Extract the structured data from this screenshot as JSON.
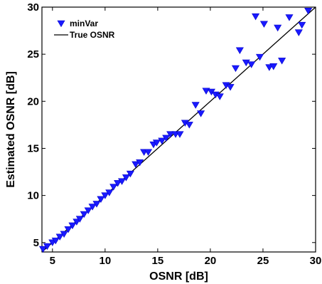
{
  "chart_data": {
    "type": "scatter",
    "xlabel": "OSNR [dB]",
    "ylabel": "Estimated OSNR [dB]",
    "xlim": [
      4,
      30
    ],
    "ylim": [
      4,
      30
    ],
    "xticks": [
      5,
      10,
      15,
      20,
      25,
      30
    ],
    "yticks": [
      5,
      10,
      15,
      20,
      25,
      30
    ],
    "grid": false,
    "legend_position": "top-left",
    "series": [
      {
        "name": "minVar",
        "kind": "scatter",
        "marker": "triangle-down",
        "color": "#1a1aff",
        "points": [
          [
            4.1,
            4.3
          ],
          [
            4.5,
            4.6
          ],
          [
            5.0,
            5.0
          ],
          [
            5.3,
            5.2
          ],
          [
            5.7,
            5.6
          ],
          [
            6.1,
            5.9
          ],
          [
            6.5,
            6.4
          ],
          [
            6.9,
            6.8
          ],
          [
            7.3,
            7.2
          ],
          [
            7.6,
            7.5
          ],
          [
            8.0,
            8.0
          ],
          [
            8.4,
            8.4
          ],
          [
            8.8,
            8.8
          ],
          [
            9.2,
            9.1
          ],
          [
            9.6,
            9.6
          ],
          [
            10.0,
            10.0
          ],
          [
            10.4,
            10.3
          ],
          [
            10.8,
            10.9
          ],
          [
            11.2,
            11.3
          ],
          [
            11.6,
            11.5
          ],
          [
            12.0,
            11.9
          ],
          [
            12.4,
            12.3
          ],
          [
            12.9,
            13.3
          ],
          [
            13.3,
            13.5
          ],
          [
            13.7,
            14.6
          ],
          [
            14.1,
            14.6
          ],
          [
            14.6,
            15.4
          ],
          [
            14.9,
            15.6
          ],
          [
            15.4,
            15.8
          ],
          [
            15.8,
            16.1
          ],
          [
            16.2,
            16.5
          ],
          [
            16.7,
            16.5
          ],
          [
            17.1,
            16.5
          ],
          [
            17.6,
            17.7
          ],
          [
            18.0,
            17.5
          ],
          [
            18.6,
            19.6
          ],
          [
            19.1,
            18.7
          ],
          [
            19.6,
            21.1
          ],
          [
            20.1,
            21.0
          ],
          [
            20.5,
            20.7
          ],
          [
            20.9,
            20.5
          ],
          [
            21.5,
            21.7
          ],
          [
            21.9,
            21.5
          ],
          [
            22.4,
            23.5
          ],
          [
            22.8,
            25.4
          ],
          [
            23.4,
            24.1
          ],
          [
            23.9,
            23.9
          ],
          [
            24.3,
            29.0
          ],
          [
            24.7,
            24.7
          ],
          [
            25.1,
            28.2
          ],
          [
            25.6,
            23.6
          ],
          [
            26.0,
            23.7
          ],
          [
            26.4,
            27.8
          ],
          [
            26.8,
            24.3
          ],
          [
            27.5,
            28.9
          ],
          [
            28.4,
            27.3
          ],
          [
            28.7,
            28.1
          ],
          [
            29.3,
            29.6
          ]
        ]
      },
      {
        "name": "True OSNR",
        "kind": "line",
        "color": "#000000",
        "points": [
          [
            4,
            4
          ],
          [
            30,
            30
          ]
        ]
      }
    ]
  }
}
